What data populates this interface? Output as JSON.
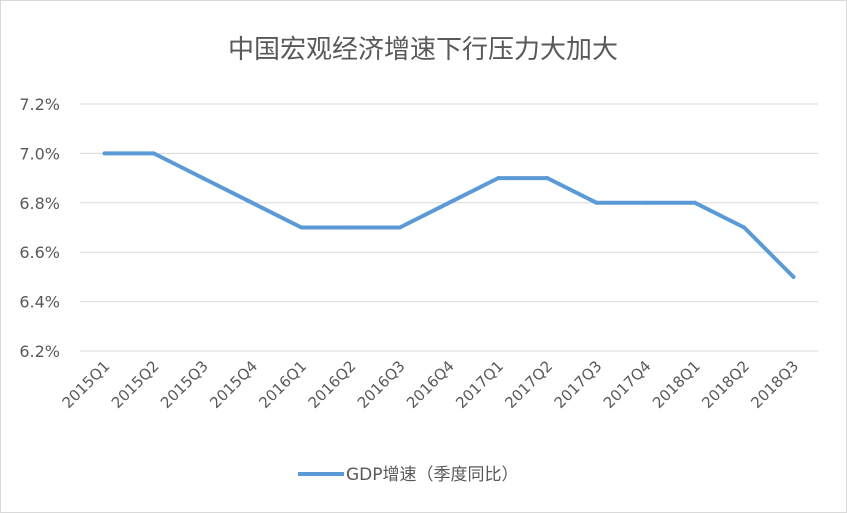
{
  "chart_data": {
    "type": "line",
    "title": "中国宏观经济增速下行压力大加大",
    "xlabel": "",
    "ylabel": "",
    "categories": [
      "2015Q1",
      "2015Q2",
      "2015Q3",
      "2015Q4",
      "2016Q1",
      "2016Q2",
      "2016Q3",
      "2016Q4",
      "2017Q1",
      "2017Q2",
      "2017Q3",
      "2017Q4",
      "2018Q1",
      "2018Q2",
      "2018Q3"
    ],
    "series": [
      {
        "name": "GDP增速（季度同比）",
        "color": "#5b9bd5",
        "values": [
          7.0,
          7.0,
          6.9,
          6.8,
          6.7,
          6.7,
          6.7,
          6.8,
          6.9,
          6.9,
          6.8,
          6.8,
          6.8,
          6.7,
          6.5
        ]
      }
    ],
    "ylim": [
      6.2,
      7.2
    ],
    "yticks": [
      "6.2%",
      "6.4%",
      "6.6%",
      "6.8%",
      "7.0%",
      "7.2%"
    ],
    "ytick_values": [
      6.2,
      6.4,
      6.6,
      6.8,
      7.0,
      7.2
    ],
    "grid": true,
    "gridline_color": "#d9d9d9",
    "legend_position": "bottom"
  }
}
